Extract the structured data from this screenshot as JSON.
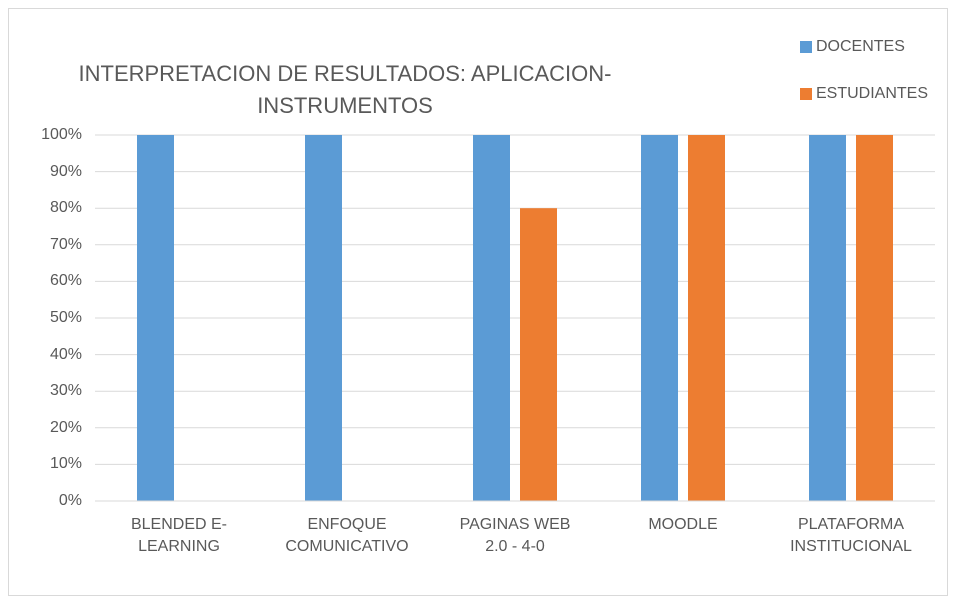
{
  "chart_data": {
    "type": "bar",
    "title": "INTERPRETACION DE RESULTADOS: APLICACION-\nINSTRUMENTOS",
    "categories": [
      "BLENDED E-\nLEARNING",
      "ENFOQUE\nCOMUNICATIVO",
      "PAGINAS WEB\n2.0 - 4-0",
      "MOODLE",
      "PLATAFORMA\nINSTITUCIONAL"
    ],
    "series": [
      {
        "name": "DOCENTES",
        "color": "#5b9bd5",
        "values": [
          100,
          100,
          100,
          100,
          100
        ]
      },
      {
        "name": "ESTUDIANTES",
        "color": "#ed7d31",
        "values": [
          0,
          0,
          80,
          100,
          100
        ]
      }
    ],
    "ylim": [
      0,
      100
    ],
    "yticks": [
      {
        "value": 0,
        "label": "0%"
      },
      {
        "value": 10,
        "label": "10%"
      },
      {
        "value": 20,
        "label": "20%"
      },
      {
        "value": 30,
        "label": "30%"
      },
      {
        "value": 40,
        "label": "40%"
      },
      {
        "value": 50,
        "label": "50%"
      },
      {
        "value": 60,
        "label": "60%"
      },
      {
        "value": 70,
        "label": "70%"
      },
      {
        "value": 80,
        "label": "80%"
      },
      {
        "value": 90,
        "label": "90%"
      },
      {
        "value": 100,
        "label": "100%"
      }
    ],
    "grid": true,
    "legend": "top-right"
  }
}
